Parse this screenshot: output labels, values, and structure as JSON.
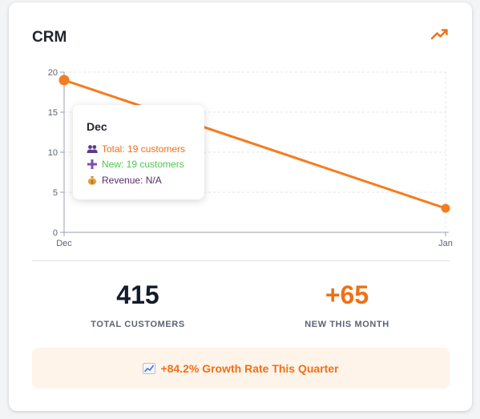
{
  "card": {
    "title": "CRM",
    "trend_icon": "trending-up-icon"
  },
  "chart_data": {
    "type": "line",
    "categories": [
      "Dec",
      "Jan"
    ],
    "series": [
      {
        "values": [
          19,
          3
        ]
      }
    ],
    "yticks": [
      "0",
      "5",
      "10",
      "15",
      "20"
    ],
    "ylim": [
      0,
      20
    ],
    "grid": true,
    "color": "#f57c1f"
  },
  "tooltip": {
    "title": "Dec",
    "total": "Total: 19 customers",
    "new": "New: 19 customers",
    "revenue": "Revenue: N/A",
    "total_icon": "users-icon",
    "new_icon": "plus-icon",
    "revenue_icon": "money-bag-icon",
    "total_color": "#f07015",
    "new_color": "#4cc94c",
    "revenue_color": "#5a2a6b"
  },
  "stats": {
    "total_customers": {
      "value": "415",
      "label": "TOTAL CUSTOMERS",
      "color": "#141b2d"
    },
    "new_this_month": {
      "value": "+65",
      "label": "NEW THIS MONTH",
      "color": "#f07015"
    }
  },
  "growth": {
    "text": "+84.2% Growth Rate This Quarter",
    "icon": "chart-increasing-icon"
  }
}
